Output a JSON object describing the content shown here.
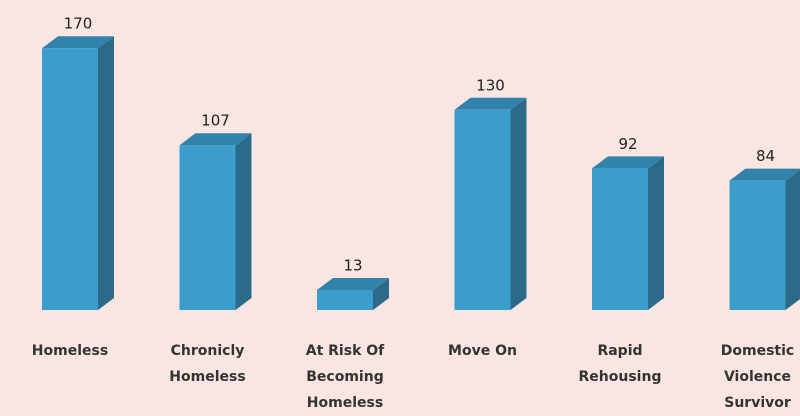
{
  "chart_data": {
    "type": "bar",
    "categories": [
      "Homeless",
      "Chronicly Homeless",
      "At Risk Of Becoming Homeless",
      "Move On",
      "Rapid Rehousing",
      "Domestic Violence Survivor"
    ],
    "values": [
      170,
      107,
      13,
      130,
      92,
      84
    ],
    "color": "#3a9dcb"
  }
}
